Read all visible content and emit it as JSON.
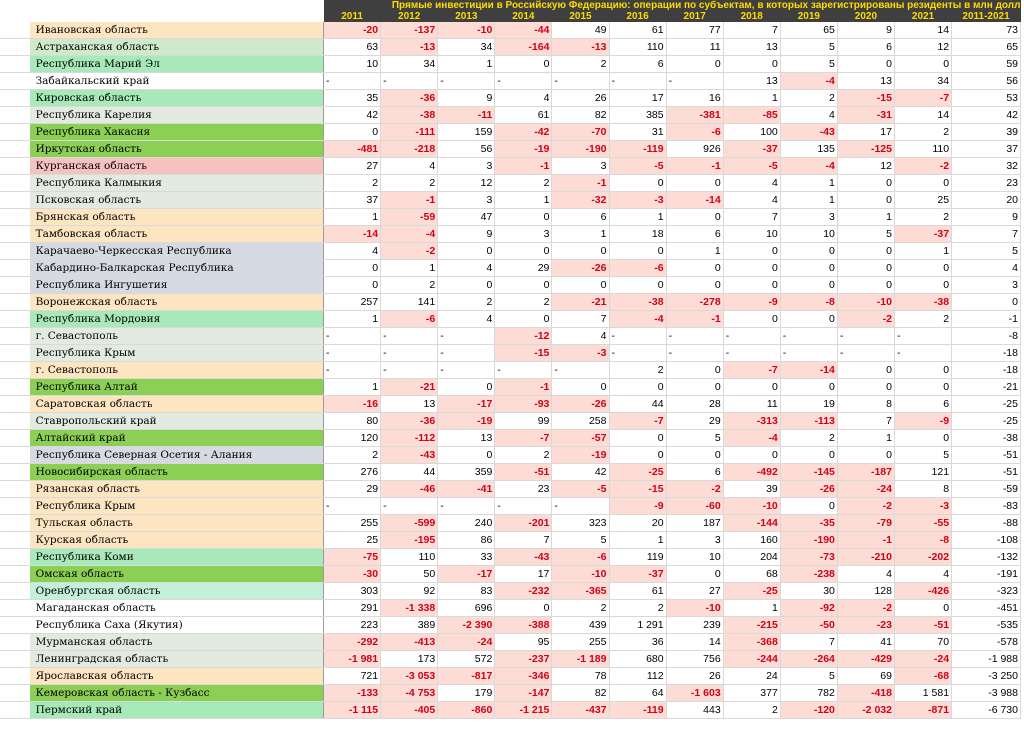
{
  "title": "Прямые инвестиции в Российскую Федерацию: операции по субъектам, в которых зарегистрированы резиденты в млн долл",
  "years": [
    "2011",
    "2012",
    "2013",
    "2014",
    "2015",
    "2016",
    "2017",
    "2018",
    "2019",
    "2020",
    "2021",
    "2011-2021"
  ],
  "colors": {
    "header_bg": "#3f3f3f",
    "header_text": "#ffdb00",
    "neg_bg": "#fcdcd4",
    "neg_text": "#d0021b"
  },
  "rows": [
    {
      "name": "Ивановская область",
      "bg": "orange",
      "v": [
        "-20",
        "-137",
        "-10",
        "-44",
        "49",
        "61",
        "77",
        "7",
        "65",
        "9",
        "14",
        "73"
      ]
    },
    {
      "name": "Астраханская область",
      "bg": "lgreen",
      "v": [
        "63",
        "-13",
        "34",
        "-164",
        "-13",
        "110",
        "11",
        "13",
        "5",
        "6",
        "12",
        "65"
      ]
    },
    {
      "name": "Республика Марий Эл",
      "bg": "green",
      "v": [
        "10",
        "34",
        "1",
        "0",
        "2",
        "6",
        "0",
        "0",
        "5",
        "0",
        "0",
        "59"
      ]
    },
    {
      "name": "Забайкальский край",
      "bg": "white",
      "v": [
        "-",
        "-",
        "-",
        "-",
        "-",
        "-",
        "-",
        "13",
        "-4",
        "13",
        "34",
        "56"
      ]
    },
    {
      "name": "Кировская область",
      "bg": "green",
      "v": [
        "35",
        "-36",
        "9",
        "4",
        "26",
        "17",
        "16",
        "1",
        "2",
        "-15",
        "-7",
        "53"
      ]
    },
    {
      "name": "Республика Карелия",
      "bg": "lgray",
      "v": [
        "42",
        "-38",
        "-11",
        "61",
        "82",
        "385",
        "-381",
        "-85",
        "4",
        "-31",
        "14",
        "42"
      ]
    },
    {
      "name": "Республика Хакасия",
      "bg": "dgreen",
      "v": [
        "0",
        "-111",
        "159",
        "-42",
        "-70",
        "31",
        "-6",
        "100",
        "-43",
        "17",
        "2",
        "39"
      ]
    },
    {
      "name": "Иркутская область",
      "bg": "dgreen",
      "v": [
        "-481",
        "-218",
        "56",
        "-19",
        "-190",
        "-119",
        "926",
        "-37",
        "135",
        "-125",
        "110",
        "37"
      ]
    },
    {
      "name": "Курганская область",
      "bg": "pink",
      "v": [
        "27",
        "4",
        "3",
        "-1",
        "3",
        "-5",
        "-1",
        "-5",
        "-4",
        "12",
        "-2",
        "32"
      ]
    },
    {
      "name": "Республика Калмыкия",
      "bg": "lgray",
      "v": [
        "2",
        "2",
        "12",
        "2",
        "-1",
        "0",
        "0",
        "4",
        "1",
        "0",
        "0",
        "23"
      ]
    },
    {
      "name": "Псковская область",
      "bg": "lgray",
      "v": [
        "37",
        "-1",
        "3",
        "1",
        "-32",
        "-3",
        "-14",
        "4",
        "1",
        "0",
        "25",
        "20"
      ]
    },
    {
      "name": "Брянская область",
      "bg": "orange",
      "v": [
        "1",
        "-59",
        "47",
        "0",
        "6",
        "1",
        "0",
        "7",
        "3",
        "1",
        "2",
        "9"
      ]
    },
    {
      "name": "Тамбовская область",
      "bg": "orange",
      "v": [
        "-14",
        "-4",
        "9",
        "3",
        "1",
        "18",
        "6",
        "10",
        "10",
        "5",
        "-37",
        "7"
      ]
    },
    {
      "name": "Карачаево-Черкесская Республика",
      "bg": "gray",
      "v": [
        "4",
        "-2",
        "0",
        "0",
        "0",
        "0",
        "1",
        "0",
        "0",
        "0",
        "1",
        "5"
      ]
    },
    {
      "name": "Кабардино-Балкарская Республика",
      "bg": "gray",
      "v": [
        "0",
        "1",
        "4",
        "29",
        "-26",
        "-6",
        "0",
        "0",
        "0",
        "0",
        "0",
        "4"
      ]
    },
    {
      "name": "Республика Ингушетия",
      "bg": "gray",
      "v": [
        "0",
        "2",
        "0",
        "0",
        "0",
        "0",
        "0",
        "0",
        "0",
        "0",
        "0",
        "3"
      ]
    },
    {
      "name": "Воронежская область",
      "bg": "orange",
      "v": [
        "257",
        "141",
        "2",
        "2",
        "-21",
        "-38",
        "-278",
        "-9",
        "-8",
        "-10",
        "-38",
        "0"
      ]
    },
    {
      "name": "Республика Мордовия",
      "bg": "green",
      "v": [
        "1",
        "-6",
        "4",
        "0",
        "7",
        "-4",
        "-1",
        "0",
        "0",
        "-2",
        "2",
        "-1"
      ]
    },
    {
      "name": "г. Севастополь",
      "bg": "lgray",
      "v": [
        "-",
        "-",
        "-",
        "-12",
        "4",
        "-",
        "-",
        "-",
        "-",
        "-",
        "-",
        "-8"
      ]
    },
    {
      "name": "Республика Крым",
      "bg": "lgray",
      "v": [
        "-",
        "-",
        "-",
        "-15",
        "-3",
        "-",
        "-",
        "-",
        "-",
        "-",
        "-",
        "-18"
      ]
    },
    {
      "name": "г. Севастополь",
      "bg": "orange",
      "v": [
        "-",
        "-",
        "-",
        "-",
        "-",
        "2",
        "0",
        "-7",
        "-14",
        "0",
        "0",
        "-18"
      ]
    },
    {
      "name": "Республика Алтай",
      "bg": "dgreen",
      "v": [
        "1",
        "-21",
        "0",
        "-1",
        "0",
        "0",
        "0",
        "0",
        "0",
        "0",
        "0",
        "-21"
      ]
    },
    {
      "name": "Саратовская область",
      "bg": "orange",
      "v": [
        "-16",
        "13",
        "-17",
        "-93",
        "-26",
        "44",
        "28",
        "11",
        "19",
        "8",
        "6",
        "-25"
      ]
    },
    {
      "name": "Ставропольский край",
      "bg": "lgray",
      "v": [
        "80",
        "-36",
        "-19",
        "99",
        "258",
        "-7",
        "29",
        "-313",
        "-113",
        "7",
        "-9",
        "-25"
      ]
    },
    {
      "name": "Алтайский край",
      "bg": "dgreen",
      "v": [
        "120",
        "-112",
        "13",
        "-7",
        "-57",
        "0",
        "5",
        "-4",
        "2",
        "1",
        "0",
        "-38"
      ]
    },
    {
      "name": "Республика Северная Осетия - Алания",
      "bg": "gray",
      "v": [
        "2",
        "-43",
        "0",
        "2",
        "-19",
        "0",
        "0",
        "0",
        "0",
        "0",
        "5",
        "-51"
      ]
    },
    {
      "name": "Новосибирская область",
      "bg": "dgreen",
      "v": [
        "276",
        "44",
        "359",
        "-51",
        "42",
        "-25",
        "6",
        "-492",
        "-145",
        "-187",
        "121",
        "-51"
      ]
    },
    {
      "name": "Рязанская область",
      "bg": "orange",
      "v": [
        "29",
        "-46",
        "-41",
        "23",
        "-5",
        "-15",
        "-2",
        "39",
        "-26",
        "-24",
        "8",
        "-59"
      ]
    },
    {
      "name": "Республика Крым",
      "bg": "orange",
      "v": [
        "-",
        "-",
        "-",
        "-",
        "-",
        "-9",
        "-60",
        "-10",
        "0",
        "-2",
        "-3",
        "-83"
      ]
    },
    {
      "name": "Тульская область",
      "bg": "orange",
      "v": [
        "255",
        "-599",
        "240",
        "-201",
        "323",
        "20",
        "187",
        "-144",
        "-35",
        "-79",
        "-55",
        "-88"
      ]
    },
    {
      "name": "Курская область",
      "bg": "orange",
      "v": [
        "25",
        "-195",
        "86",
        "7",
        "5",
        "1",
        "3",
        "160",
        "-190",
        "-1",
        "-8",
        "-108"
      ]
    },
    {
      "name": "Республика Коми",
      "bg": "green",
      "v": [
        "-75",
        "110",
        "33",
        "-43",
        "-6",
        "119",
        "10",
        "204",
        "-73",
        "-210",
        "-202",
        "-132"
      ]
    },
    {
      "name": "Омская область",
      "bg": "dgreen",
      "v": [
        "-30",
        "50",
        "-17",
        "17",
        "-10",
        "-37",
        "0",
        "68",
        "-238",
        "4",
        "4",
        "-191"
      ]
    },
    {
      "name": "Оренбургская область",
      "bg": "mint",
      "v": [
        "303",
        "92",
        "83",
        "-232",
        "-365",
        "61",
        "27",
        "-25",
        "30",
        "128",
        "-426",
        "-323"
      ]
    },
    {
      "name": "Магаданская область",
      "bg": "white",
      "v": [
        "291",
        "-1 338",
        "696",
        "0",
        "2",
        "2",
        "-10",
        "1",
        "-92",
        "-2",
        "0",
        "-451"
      ]
    },
    {
      "name": "Республика Саха (Якутия)",
      "bg": "white",
      "v": [
        "223",
        "389",
        "-2 390",
        "-388",
        "439",
        "1 291",
        "239",
        "-215",
        "-50",
        "-23",
        "-51",
        "-535"
      ]
    },
    {
      "name": "Мурманская область",
      "bg": "lgray",
      "v": [
        "-292",
        "-413",
        "-24",
        "95",
        "255",
        "36",
        "14",
        "-368",
        "7",
        "41",
        "70",
        "-578"
      ]
    },
    {
      "name": "Ленинградская область",
      "bg": "lgray",
      "v": [
        "-1 981",
        "173",
        "572",
        "-237",
        "-1 189",
        "680",
        "756",
        "-244",
        "-264",
        "-429",
        "-24",
        "-1 988"
      ]
    },
    {
      "name": "Ярославская область",
      "bg": "orange",
      "v": [
        "721",
        "-3 053",
        "-817",
        "-346",
        "78",
        "112",
        "26",
        "24",
        "5",
        "69",
        "-68",
        "-3 250"
      ]
    },
    {
      "name": "Кемеровская область - Кузбасс",
      "bg": "dgreen",
      "v": [
        "-133",
        "-4 753",
        "179",
        "-147",
        "82",
        "64",
        "-1 603",
        "377",
        "782",
        "-418",
        "1 581",
        "-3 988"
      ]
    },
    {
      "name": "Пермский край",
      "bg": "green",
      "v": [
        "-1 115",
        "-405",
        "-860",
        "-1 215",
        "-437",
        "-119",
        "443",
        "2",
        "-120",
        "-2 032",
        "-871",
        "-6 730"
      ]
    }
  ]
}
